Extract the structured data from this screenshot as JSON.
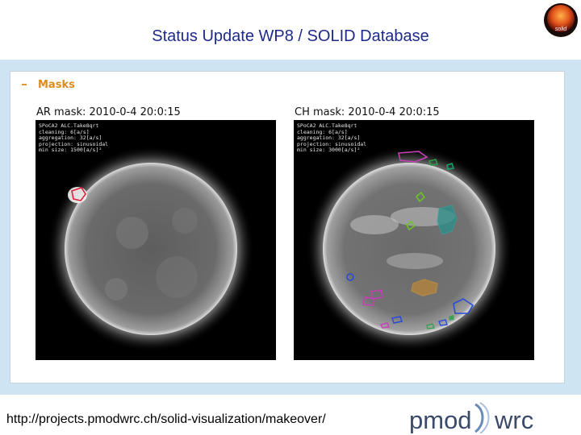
{
  "slide": {
    "title": "Status Update WP8 / SOLID Database",
    "logo_text": "solid",
    "url": "http://projects.pmodwrc.ch/solid-visualization/makeover/",
    "footer_logo": {
      "left": "pmod",
      "right": "wrc"
    }
  },
  "panel": {
    "section_label": "Masks",
    "masks": [
      {
        "title": "AR mask: 2010-0-4 20:0:15",
        "info": [
          "SPoCA2 ALC.Take8qrt",
          "cleaning: 6[a/s]",
          "aggregation: 32[a/s]",
          "projection: sinusoidal",
          "min size: 1500[a/s]²"
        ]
      },
      {
        "title": "CH mask: 2010-0-4 20:0:15",
        "info": [
          "SPoCA2 ALC.Take8qrt",
          "cleaning: 6[a/s]",
          "aggregation: 32[a/s]",
          "projection: sinusoidal",
          "min size: 3000[a/s]²"
        ]
      }
    ]
  },
  "colors": {
    "title": "#1d2a8a",
    "band": "#cfe4f2",
    "section_label": "#e08a1e"
  }
}
